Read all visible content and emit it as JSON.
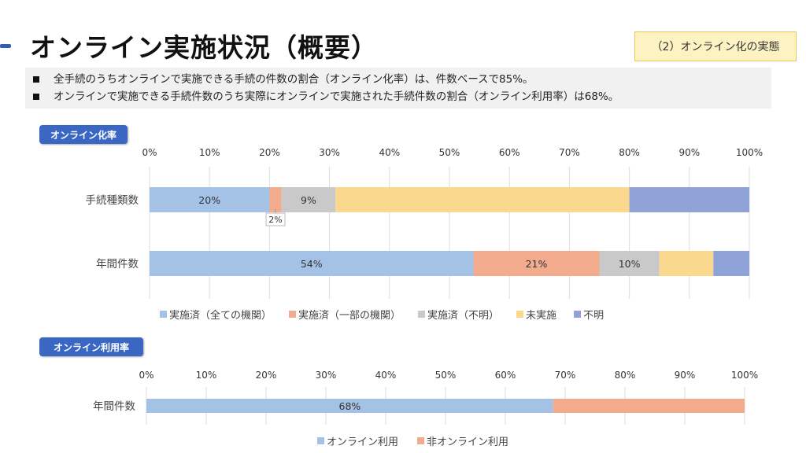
{
  "page": {
    "title": "オンライン実施状況（概要）",
    "section_tag": "（2）オンライン化の実態"
  },
  "summary": [
    "全手続のうちオンラインで実施できる手続の件数の割合（オンライン化率）は、件数ベースで85%。",
    "オンラインで実施できる手続件数のうち実際にオンラインで実施された手続件数の割合（オンライン利用率）は68%。"
  ],
  "chart_data": [
    {
      "label": "オンライン化率",
      "type": "bar",
      "orientation": "horizontal",
      "stacked": true,
      "ticks": [
        "0%",
        "10%",
        "20%",
        "30%",
        "40%",
        "50%",
        "60%",
        "70%",
        "80%",
        "90%",
        "100%"
      ],
      "xlim": [
        0,
        100
      ],
      "categories": [
        "手続種類数",
        "年間件数"
      ],
      "series": [
        {
          "name": "実施済（全ての機関）",
          "color": "#a4c2e6",
          "values": [
            20,
            54
          ],
          "labels": [
            "20%",
            "54%"
          ]
        },
        {
          "name": "実施済（一部の機関）",
          "color": "#f2ab8c",
          "values": [
            2,
            21
          ],
          "labels": [
            "2%",
            "21%"
          ]
        },
        {
          "name": "実施済（不明）",
          "color": "#c9c9c9",
          "values": [
            9,
            10
          ],
          "labels": [
            "9%",
            "10%"
          ]
        },
        {
          "name": "未実施",
          "color": "#fad98e",
          "values": [
            49,
            9
          ],
          "labels": [
            "",
            ""
          ]
        },
        {
          "name": "不明",
          "color": "#8fa3d8",
          "values": [
            20,
            6
          ],
          "labels": [
            "",
            ""
          ]
        }
      ],
      "grid": true,
      "legend_position": "bottom"
    },
    {
      "label": "オンライン利用率",
      "type": "bar",
      "orientation": "horizontal",
      "stacked": true,
      "ticks": [
        "0%",
        "10%",
        "20%",
        "30%",
        "40%",
        "50%",
        "60%",
        "70%",
        "80%",
        "90%",
        "100%"
      ],
      "xlim": [
        0,
        100
      ],
      "categories": [
        "年間件数"
      ],
      "series": [
        {
          "name": "オンライン利用",
          "color": "#a4c2e6",
          "values": [
            68
          ],
          "labels": [
            "68%"
          ]
        },
        {
          "name": "非オンライン利用",
          "color": "#f2ab8c",
          "values": [
            32
          ],
          "labels": [
            ""
          ]
        }
      ],
      "grid": true,
      "legend_position": "bottom"
    }
  ]
}
